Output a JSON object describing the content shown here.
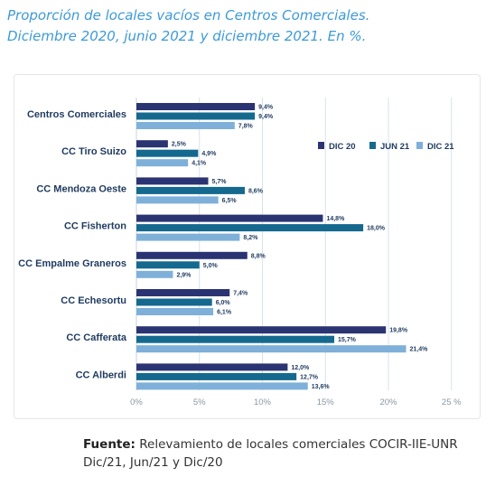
{
  "title_line1": "Proporción de locales vacíos en Centros Comerciales.",
  "title_line2": "Diciembre 2020, junio 2021 y diciembre 2021. En %.",
  "source": {
    "label": "Fuente:",
    "text_line1": "Relevamiento de locales comerciales COCIR-IIE-UNR",
    "text_line2": "Dic/21, Jun/21 y Dic/20"
  },
  "chart_data": {
    "type": "bar",
    "orientation": "horizontal",
    "categories": [
      "Centros Comerciales",
      "CC Tiro Suizo",
      "CC Mendoza Oeste",
      "CC Fisherton",
      "CC Empalme Graneros",
      "CC Echesortu",
      "CC Cafferata",
      "CC Alberdi"
    ],
    "series": [
      {
        "name": "DIC 20",
        "color": "#2b3472",
        "values": [
          9.4,
          2.5,
          5.7,
          14.8,
          8.8,
          7.4,
          19.8,
          12.0
        ],
        "labels": [
          "9,4%",
          "2,5%",
          "5,7%",
          "14,8%",
          "8,8%",
          "7,4%",
          "19,8%",
          "12,0%"
        ]
      },
      {
        "name": "JUN 21",
        "color": "#15698f",
        "values": [
          9.4,
          4.9,
          8.6,
          18.0,
          5.0,
          6.0,
          15.7,
          12.7
        ],
        "labels": [
          "9,4%",
          "4,9%",
          "8,6%",
          "18,0%",
          "5,0%",
          "6,0%",
          "15,7%",
          "12,7%"
        ]
      },
      {
        "name": "DIC 21",
        "color": "#7fb0d9",
        "values": [
          7.8,
          4.1,
          6.5,
          8.2,
          2.9,
          6.1,
          21.4,
          13.6
        ],
        "labels": [
          "7,8%",
          "4,1%",
          "6,5%",
          "8,2%",
          "2,9%",
          "6,1%",
          "21,4%",
          "13,6%"
        ]
      }
    ],
    "xlim": [
      0,
      25
    ],
    "xticks": [
      0,
      5,
      10,
      15,
      20,
      25
    ],
    "xtick_labels": [
      "0%",
      "5%",
      "10%",
      "15%",
      "20%",
      "25 %"
    ],
    "grid": true,
    "legend_position": "top-right"
  }
}
